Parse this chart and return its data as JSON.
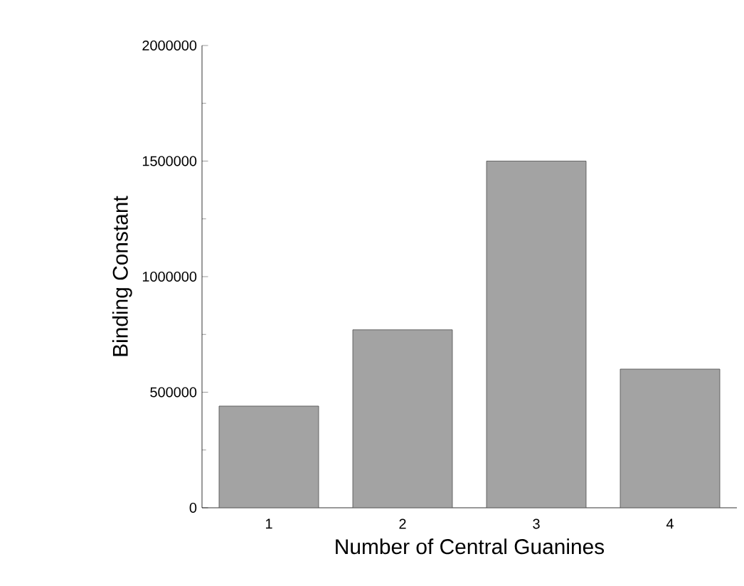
{
  "chart_data": {
    "type": "bar",
    "xlabel": "Number of Central Guanines",
    "ylabel": "Binding Constant",
    "categories": [
      "1",
      "2",
      "3",
      "4"
    ],
    "values": [
      440000,
      770000,
      1500000,
      600000
    ],
    "color": "#a3a3a3",
    "ylim": [
      0,
      2000000
    ],
    "yticks": [
      0,
      500000,
      1000000,
      1500000,
      2000000
    ]
  }
}
